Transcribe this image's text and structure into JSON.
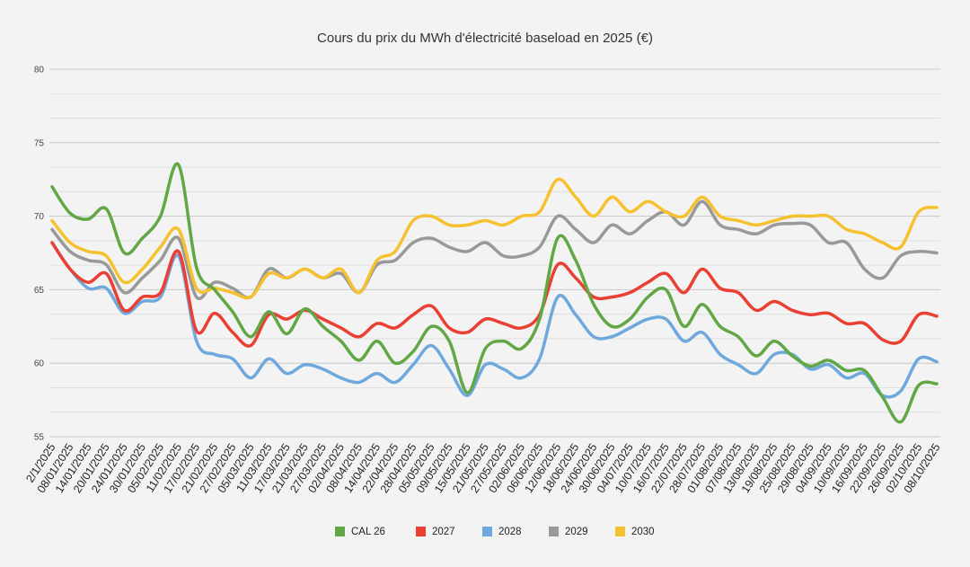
{
  "chart_data": {
    "type": "line",
    "title": "Cours du prix du MWh d'électricité baseload en 2025 (€)",
    "xlabel": "",
    "ylabel": "",
    "ylim": [
      55,
      80
    ],
    "yticks": [
      "55",
      "60",
      "65",
      "70",
      "75",
      "80"
    ],
    "grid": true,
    "legend_position": "bottom",
    "categories": [
      "2/1/2025",
      "08/01/2025",
      "14/01/2025",
      "20/01/2025",
      "24/01/2025",
      "30/01/2025",
      "05/02/2025",
      "11/02/2025",
      "17/02/2025",
      "21/02/2025",
      "27/02/2025",
      "05/03/2025",
      "11/03/2025",
      "17/03/2025",
      "21/03/2025",
      "27/03/2025",
      "02/04/2025",
      "08/04/2025",
      "14/04/2025",
      "22/04/2025",
      "28/04/2025",
      "05/05/2025",
      "09/05/2025",
      "15/05/2025",
      "21/05/2025",
      "27/05/2025",
      "02/06/2025",
      "06/06/2025",
      "12/06/2025",
      "18/06/2025",
      "24/06/2025",
      "30/06/2025",
      "04/07/2025",
      "10/07/2025",
      "16/07/2025",
      "22/07/2025",
      "28/07/2025",
      "01/08/2025",
      "07/08/2025",
      "13/08/2025",
      "19/08/2025",
      "25/08/2025",
      "29/08/2025",
      "04/09/2025",
      "10/09/2025",
      "16/09/2025",
      "22/09/2025",
      "26/09/2025",
      "02/10/2025",
      "08/10/2025"
    ],
    "series": [
      {
        "name": "CAL 26",
        "color": "#62a745",
        "values": [
          72.0,
          70.2,
          69.8,
          70.5,
          67.5,
          68.5,
          70.0,
          73.5,
          66.5,
          65.0,
          63.5,
          61.8,
          63.5,
          62.0,
          63.7,
          62.5,
          61.5,
          60.2,
          61.5,
          60.0,
          60.8,
          62.5,
          61.5,
          58.0,
          61.0,
          61.5,
          61.0,
          63.0,
          68.5,
          67.0,
          64.0,
          62.5,
          63.0,
          64.5,
          65.0,
          62.5,
          64.0,
          62.5,
          61.8,
          60.5,
          61.5,
          60.5,
          59.8,
          60.2,
          59.5,
          59.5,
          57.7,
          56.0,
          58.5,
          58.6
        ]
      },
      {
        "name": "2027",
        "color": "#ea3f33",
        "values": [
          68.2,
          66.4,
          65.5,
          66.1,
          63.6,
          64.5,
          64.8,
          67.6,
          62.2,
          63.4,
          62.1,
          61.2,
          63.3,
          63.0,
          63.6,
          63.0,
          62.4,
          61.8,
          62.7,
          62.4,
          63.3,
          63.9,
          62.4,
          62.1,
          63.0,
          62.7,
          62.4,
          63.3,
          66.7,
          65.8,
          64.5,
          64.5,
          64.8,
          65.5,
          66.1,
          64.8,
          66.4,
          65.1,
          64.8,
          63.6,
          64.2,
          63.6,
          63.3,
          63.4,
          62.7,
          62.7,
          61.6,
          61.5,
          63.3,
          63.2
        ]
      },
      {
        "name": "2028",
        "color": "#6ea8dc",
        "values": [
          68.2,
          66.4,
          65.1,
          65.1,
          63.4,
          64.2,
          64.5,
          67.3,
          61.5,
          60.6,
          60.3,
          59.0,
          60.3,
          59.3,
          59.9,
          59.6,
          59.0,
          58.7,
          59.3,
          58.7,
          59.9,
          61.2,
          59.6,
          57.8,
          59.9,
          59.6,
          59.0,
          60.3,
          64.5,
          63.3,
          61.8,
          61.8,
          62.4,
          63.0,
          63.0,
          61.5,
          62.1,
          60.6,
          59.9,
          59.3,
          60.6,
          60.6,
          59.6,
          59.9,
          59.0,
          59.3,
          57.8,
          58.1,
          60.3,
          60.1
        ]
      },
      {
        "name": "2029",
        "color": "#999999",
        "values": [
          69.1,
          67.6,
          67.0,
          66.7,
          64.8,
          65.8,
          67.0,
          68.5,
          64.5,
          65.5,
          65.1,
          64.5,
          66.4,
          65.8,
          66.4,
          65.8,
          66.1,
          64.8,
          66.7,
          67.0,
          68.2,
          68.5,
          67.9,
          67.6,
          68.2,
          67.3,
          67.3,
          67.9,
          70.0,
          69.1,
          68.2,
          69.4,
          68.8,
          69.7,
          70.3,
          69.4,
          71.0,
          69.4,
          69.1,
          68.8,
          69.4,
          69.5,
          69.4,
          68.2,
          68.2,
          66.4,
          65.8,
          67.3,
          67.6,
          67.5
        ]
      },
      {
        "name": "2030",
        "color": "#f5c12e",
        "values": [
          69.7,
          68.2,
          67.6,
          67.3,
          65.5,
          66.4,
          67.9,
          69.1,
          65.1,
          65.1,
          64.8,
          64.5,
          66.1,
          65.8,
          66.4,
          65.8,
          66.4,
          64.8,
          67.0,
          67.6,
          69.7,
          70.0,
          69.4,
          69.4,
          69.7,
          69.4,
          70.0,
          70.3,
          72.5,
          71.3,
          70.0,
          71.3,
          70.3,
          71.0,
          70.3,
          70.0,
          71.3,
          70.0,
          69.7,
          69.4,
          69.7,
          70.0,
          70.0,
          70.0,
          69.1,
          68.8,
          68.2,
          67.9,
          70.3,
          70.6
        ]
      }
    ]
  }
}
